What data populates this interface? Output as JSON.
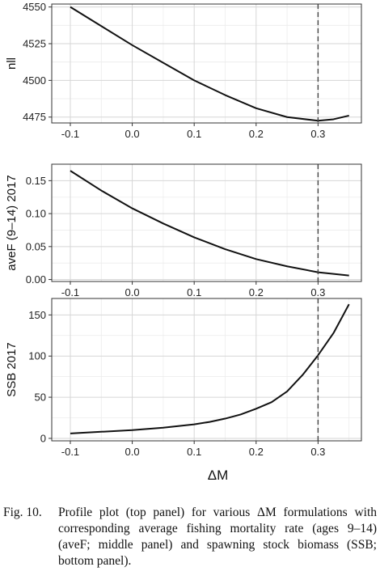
{
  "chart_data": [
    {
      "type": "line",
      "panel": "top",
      "ylabel": "nll",
      "x": [
        -0.1,
        -0.05,
        0.0,
        0.05,
        0.1,
        0.15,
        0.2,
        0.25,
        0.3,
        0.325,
        0.35
      ],
      "y": [
        4550,
        4537,
        4524,
        4512,
        4500,
        4490,
        4481,
        4475,
        4472.5,
        4473.5,
        4476
      ],
      "xlim": [
        -0.13,
        0.37
      ],
      "ylim": [
        4471,
        4552
      ],
      "xticks": [
        -0.1,
        0.0,
        0.1,
        0.2,
        0.3
      ],
      "xtick_labels": [
        "-0.1",
        "0.0",
        "0.1",
        "0.2",
        "0.3"
      ],
      "yticks": [
        4475,
        4500,
        4525,
        4550
      ],
      "ytick_labels": [
        "4475",
        "4500",
        "4525",
        "4550"
      ],
      "vline": 0.3,
      "grid": true
    },
    {
      "type": "line",
      "panel": "middle",
      "ylabel": "aveF (9–14) 2017",
      "x": [
        -0.1,
        -0.05,
        0.0,
        0.05,
        0.1,
        0.15,
        0.2,
        0.25,
        0.3,
        0.35
      ],
      "y": [
        0.165,
        0.135,
        0.108,
        0.085,
        0.064,
        0.046,
        0.031,
        0.02,
        0.011,
        0.006
      ],
      "xlim": [
        -0.13,
        0.37
      ],
      "ylim": [
        -0.003,
        0.175
      ],
      "xticks": [
        -0.1,
        0.0,
        0.1,
        0.2,
        0.3
      ],
      "xtick_labels": [
        "-0.1",
        "0.0",
        "0.1",
        "0.2",
        "0.3"
      ],
      "yticks": [
        0.0,
        0.05,
        0.1,
        0.15
      ],
      "ytick_labels": [
        "0.00",
        "0.05",
        "0.10",
        "0.15"
      ],
      "vline": 0.3,
      "grid": true
    },
    {
      "type": "line",
      "panel": "bottom",
      "ylabel": "SSB 2017",
      "xlabel": "ΔM",
      "x": [
        -0.1,
        -0.05,
        0.0,
        0.05,
        0.1,
        0.125,
        0.15,
        0.175,
        0.2,
        0.225,
        0.25,
        0.275,
        0.3,
        0.325,
        0.35
      ],
      "y": [
        6,
        8,
        10,
        13,
        17,
        20,
        24,
        29,
        36,
        44,
        57,
        77,
        101,
        128,
        163
      ],
      "xlim": [
        -0.13,
        0.37
      ],
      "ylim": [
        -3,
        170
      ],
      "xticks": [
        -0.1,
        0.0,
        0.1,
        0.2,
        0.3
      ],
      "xtick_labels": [
        "-0.1",
        "0.0",
        "0.1",
        "0.2",
        "0.3"
      ],
      "yticks": [
        0,
        50,
        100,
        150
      ],
      "ytick_labels": [
        "0",
        "50",
        "100",
        "150"
      ],
      "vline": 0.3,
      "grid": true
    }
  ],
  "caption": {
    "label": "Fig. 10.",
    "text": "Profile plot (top panel) for various ΔM formulations with corresponding average fishing mortality rate (ages 9–14) (aveF; middle panel) and spawning stock biomass (SSB; bottom panel)."
  }
}
